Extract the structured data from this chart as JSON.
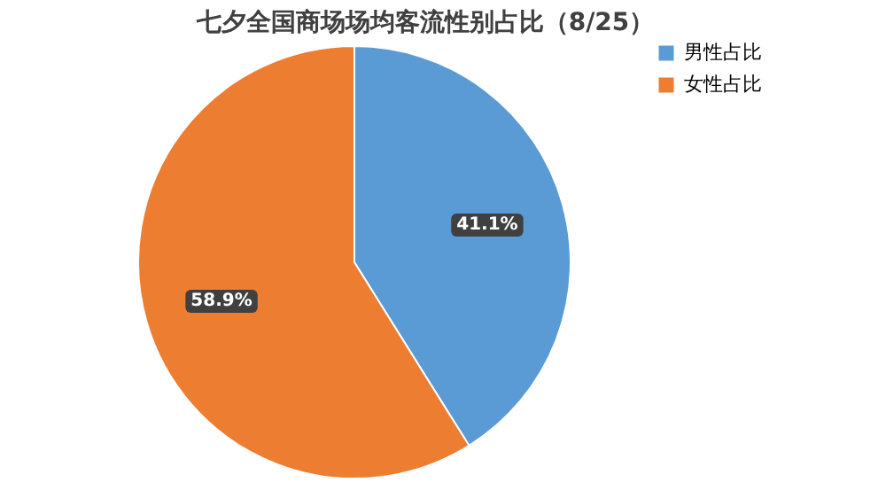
{
  "chart_data": {
    "type": "pie",
    "title": "七夕全国商场场均客流性别占比（8/25）",
    "categories": [
      "男性占比",
      "女性占比"
    ],
    "values": [
      41.1,
      58.9
    ],
    "colors": [
      "#5b9bd5",
      "#ed7d31"
    ],
    "value_labels": [
      "41.1%",
      "58.9%"
    ],
    "legend": "right"
  }
}
